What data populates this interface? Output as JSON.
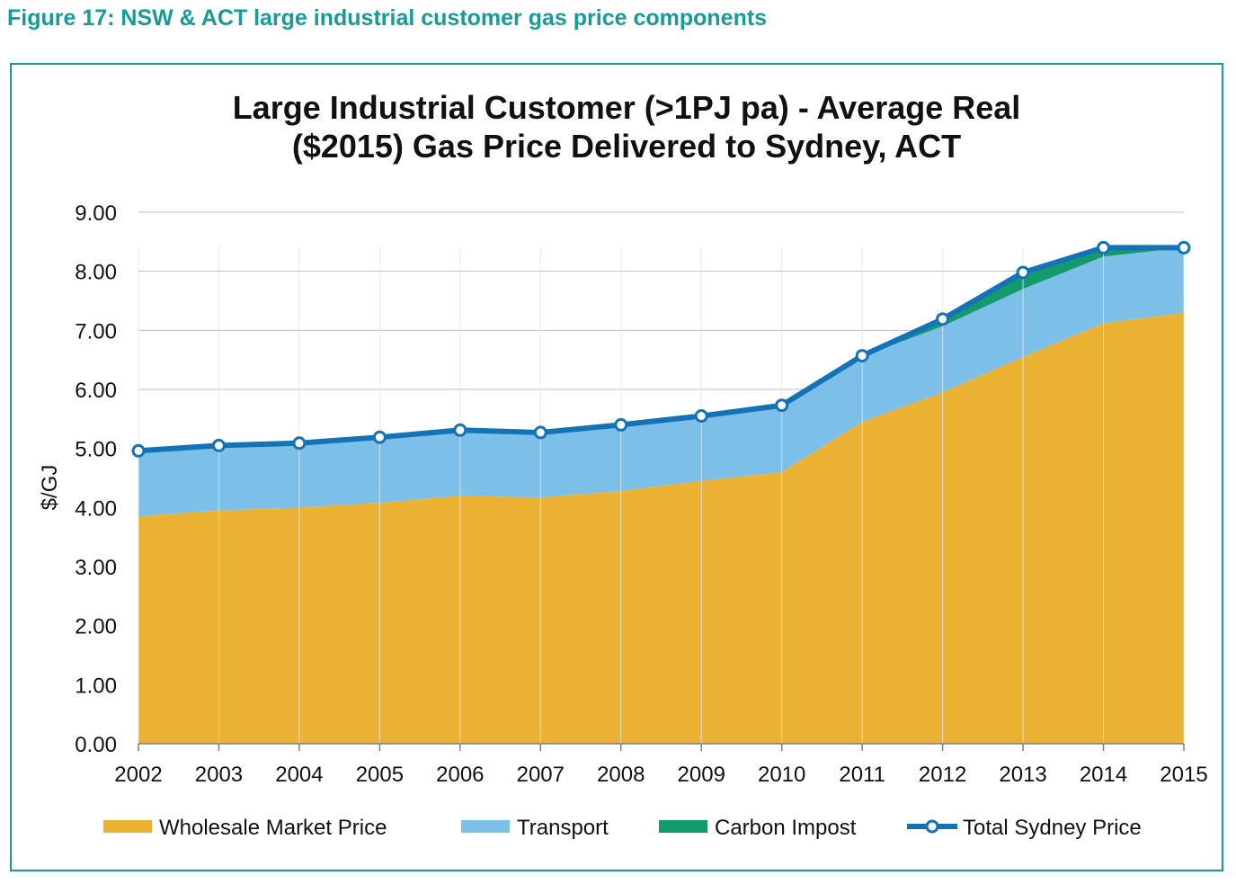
{
  "caption": "Figure 17: NSW & ACT large industrial customer gas price components",
  "colors": {
    "wholesale": "#ebb133",
    "transport": "#7cc0ea",
    "carbon": "#149b6b",
    "total": "#1473b6",
    "caption": "#169c96",
    "frame": "#1a9a94"
  },
  "chart_data": {
    "type": "area",
    "title": [
      "Large Industrial Customer (>1PJ pa) - Average Real",
      "($2015) Gas Price Delivered to Sydney, ACT"
    ],
    "xlabel": "",
    "ylabel": "$/GJ",
    "ylim": [
      0,
      9
    ],
    "yticks": [
      "0.00",
      "1.00",
      "2.00",
      "3.00",
      "4.00",
      "5.00",
      "6.00",
      "7.00",
      "8.00",
      "9.00"
    ],
    "categories": [
      "2002",
      "2003",
      "2004",
      "2005",
      "2006",
      "2007",
      "2008",
      "2009",
      "2010",
      "2011",
      "2012",
      "2013",
      "2014",
      "2015"
    ],
    "series": [
      {
        "name": "Wholesale Market Price",
        "kind": "stacked-area",
        "values": [
          3.85,
          3.95,
          4.0,
          4.08,
          4.2,
          4.17,
          4.28,
          4.45,
          4.6,
          5.45,
          5.95,
          6.55,
          7.12,
          7.3
        ]
      },
      {
        "name": "Transport",
        "kind": "stacked-area",
        "values": [
          1.1,
          1.1,
          1.09,
          1.11,
          1.11,
          1.1,
          1.12,
          1.09,
          1.12,
          1.11,
          1.12,
          1.15,
          1.13,
          1.1
        ]
      },
      {
        "name": "Carbon Impost",
        "kind": "stacked-area",
        "values": [
          0,
          0,
          0,
          0,
          0,
          0,
          0,
          0,
          0,
          0,
          0.12,
          0.28,
          0.15,
          0
        ]
      },
      {
        "name": "Total Sydney Price",
        "kind": "line",
        "values": [
          4.96,
          5.05,
          5.09,
          5.19,
          5.31,
          5.27,
          5.4,
          5.55,
          5.73,
          6.57,
          7.19,
          7.98,
          8.4,
          8.4
        ]
      }
    ],
    "legend": [
      "Wholesale Market Price",
      "Transport",
      "Carbon Impost",
      "Total Sydney Price"
    ],
    "legend_position": "bottom",
    "grid": true
  }
}
